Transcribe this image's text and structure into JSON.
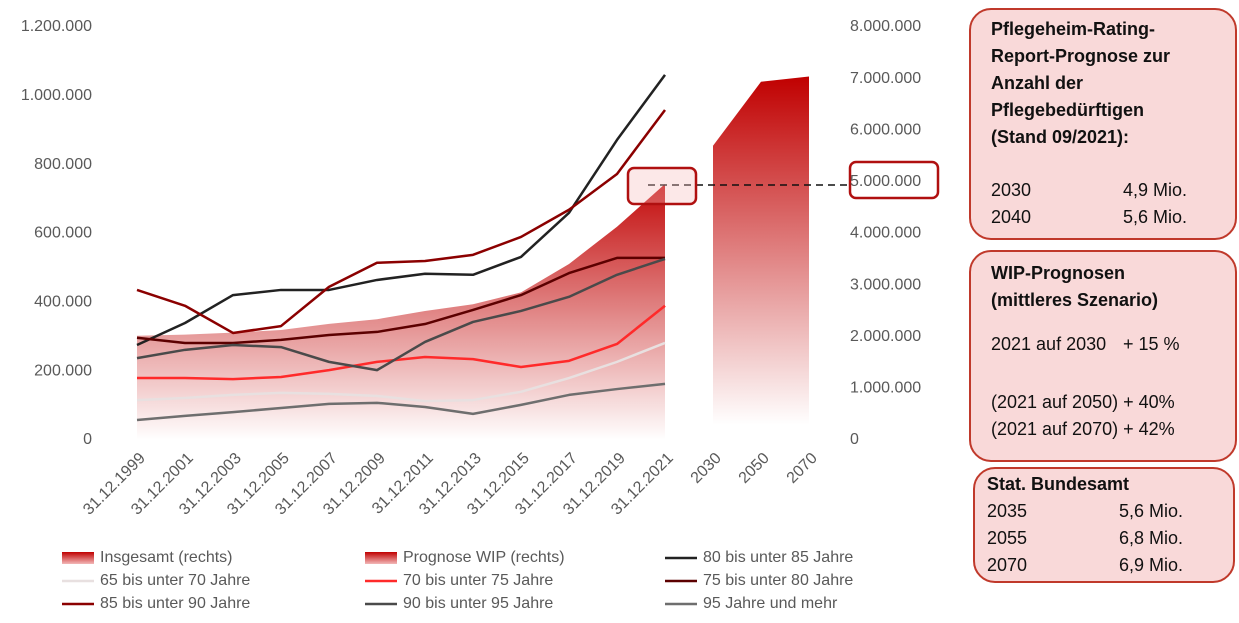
{
  "chart_data": {
    "type": "line",
    "categories": [
      "31.12.1999",
      "31.12.2001",
      "31.12.2003",
      "31.12.2005",
      "31.12.2007",
      "31.12.2009",
      "31.12.2011",
      "31.12.2013",
      "31.12.2015",
      "31.12.2017",
      "31.12.2019",
      "31.12.2021",
      "2030",
      "2050",
      "2070"
    ],
    "ylim": [
      0,
      1200000
    ],
    "yticks": [
      0,
      {
        "value": 200000,
        "label": "200.000"
      },
      {
        "value": 400000,
        "label": "400.000"
      },
      {
        "value": 600000,
        "label": "600.000"
      },
      {
        "value": 800000,
        "label": "800.000"
      },
      {
        "value": 1000000,
        "label": "1.000.000"
      },
      {
        "value": 1200000,
        "label": "1.200.000"
      }
    ],
    "y2lim": [
      0,
      8000000
    ],
    "y2ticks": [
      0,
      {
        "value": 1000000,
        "label": "1.000.000"
      },
      {
        "value": 2000000,
        "label": "2.000.000"
      },
      {
        "value": 3000000,
        "label": "3.000.000"
      },
      {
        "value": 4000000,
        "label": "4.000.000"
      },
      {
        "value": 5000000,
        "label": "5.000.000"
      },
      {
        "value": 6000000,
        "label": "6.000.000"
      },
      {
        "value": 7000000,
        "label": "7.000.000"
      },
      {
        "value": 8000000,
        "label": "8.000.000"
      }
    ],
    "grid": false,
    "series": [
      {
        "name": "Insgesamt (rechts)",
        "type": "area",
        "axis": "y2",
        "color": "#c00000",
        "values": [
          2020000,
          2040000,
          2080000,
          2130000,
          2250000,
          2340000,
          2500000,
          2630000,
          2860000,
          3410000,
          4130000,
          4960000,
          null,
          null,
          null
        ]
      },
      {
        "name": "Prognose WIP (rechts)",
        "type": "area",
        "axis": "y2",
        "color": "#c00000",
        "values": [
          null,
          null,
          null,
          null,
          null,
          null,
          null,
          null,
          null,
          null,
          null,
          null,
          5700000,
          6940000,
          7040000
        ]
      },
      {
        "name": "80 bis unter 85 Jahre",
        "color": "#222222",
        "values": [
          276000,
          340000,
          421000,
          436000,
          436000,
          465000,
          483000,
          480000,
          532000,
          660000,
          872000,
          1061000,
          null,
          null,
          null
        ]
      },
      {
        "name": "65 bis unter 70 Jahre",
        "color": "#e8e0e0",
        "values": [
          116000,
          122000,
          131000,
          137000,
          134000,
          128000,
          113000,
          116000,
          140000,
          180000,
          227000,
          282000,
          null,
          null,
          null
        ]
      },
      {
        "name": "70 bis unter 75 Jahre",
        "color": "#ff2a2a",
        "values": [
          180000,
          180000,
          177000,
          183000,
          203000,
          227000,
          241000,
          235000,
          212000,
          230000,
          279000,
          390000,
          null,
          null,
          null
        ]
      },
      {
        "name": "75 bis unter 80 Jahre",
        "color": "#5c0000",
        "values": [
          297000,
          282000,
          282000,
          291000,
          305000,
          314000,
          337000,
          378000,
          421000,
          485000,
          529000,
          529000,
          null,
          null,
          null
        ]
      },
      {
        "name": "85 bis unter 90 Jahre",
        "color": "#8b0000",
        "values": [
          436000,
          390000,
          311000,
          331000,
          445000,
          515000,
          520000,
          538000,
          590000,
          669000,
          773000,
          959000,
          null,
          null,
          null
        ]
      },
      {
        "name": "90 bis unter 95 Jahre",
        "color": "#4a4a4a",
        "values": [
          238000,
          262000,
          276000,
          270000,
          227000,
          203000,
          285000,
          343000,
          375000,
          416000,
          480000,
          526000,
          null,
          null,
          null
        ]
      },
      {
        "name": "95 Jahre und mehr",
        "color": "#6e6e6e",
        "values": [
          58000,
          70000,
          81000,
          93000,
          105000,
          108000,
          96000,
          76000,
          102000,
          131000,
          148000,
          163000,
          null,
          null,
          null
        ]
      }
    ]
  },
  "panels": [
    {
      "title": [
        "Pflegeheim-Rating-",
        "Report-Prognose zur",
        "Anzahl der",
        "Pflegebedürftigen",
        "(Stand 09/2021):"
      ],
      "rows": [
        [
          "2030",
          "4,9 Mio."
        ],
        [
          "2040",
          "5,6 Mio."
        ]
      ]
    },
    {
      "title": [
        "WIP-Prognosen",
        "(mittleres Szenario)"
      ],
      "rows": [
        [
          "2021 auf 2030",
          "+ 15 %"
        ],
        [
          "(2021 auf 2050) + 40%"
        ],
        [
          "(2021 auf 2070) + 42%"
        ]
      ]
    },
    {
      "title": [
        "Stat. Bundesamt"
      ],
      "rows": [
        [
          "2035",
          "5,6 Mio."
        ],
        [
          "2055",
          "6,8 Mio."
        ],
        [
          "2070",
          "6,9 Mio."
        ]
      ]
    }
  ]
}
